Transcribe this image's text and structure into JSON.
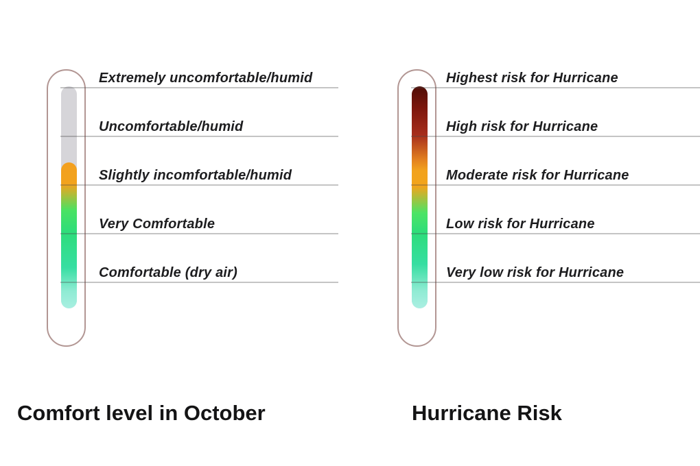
{
  "page": {
    "background_color": "#ffffff"
  },
  "gauges": [
    {
      "id": "comfort-level",
      "title": "Comfort level in October",
      "levels": [
        "Extremely uncomfortable/humid",
        "Uncomfortable/humid",
        "Slightly incomfortable/humid",
        "Very Comfortable",
        "Comfortable (dry air)"
      ]
    },
    {
      "id": "hurricane-risk",
      "title": "Hurricane Risk",
      "levels": [
        "Highest risk for Hurricane",
        "High risk for Hurricane",
        "Moderate risk for Hurricane",
        "Low risk for Hurricane",
        "Very low risk for Hurricane"
      ]
    }
  ],
  "chart_data": [
    {
      "type": "gauge",
      "variant": "thermometer",
      "title": "Comfort level in October",
      "scale_levels_top_to_bottom": [
        "Extremely uncomfortable/humid",
        "Uncomfortable/humid",
        "Slightly incomfortable/humid",
        "Very Comfortable",
        "Comfortable (dry air)"
      ],
      "value_level": "Slightly incomfortable/humid",
      "fill_fraction": 0.66,
      "fill_gradient_top_to_bottom": [
        "#f2a31d",
        "#49e263",
        "#2edd7b",
        "#37dea2",
        "#a8efe1"
      ],
      "empty_tube_color": "#d6d5d9",
      "outline_color": "#b29693",
      "gridlines": true,
      "legend_position": "none"
    },
    {
      "type": "gauge",
      "variant": "thermometer",
      "title": "Hurricane Risk",
      "scale_levels_top_to_bottom": [
        "Highest risk for Hurricane",
        "High risk for Hurricane",
        "Moderate risk for Hurricane",
        "Low risk for Hurricane",
        "Very low risk for Hurricane"
      ],
      "value_level": "Highest risk for Hurricane",
      "fill_fraction": 1.0,
      "fill_gradient_top_to_bottom": [
        "#500e07",
        "#a72e1c",
        "#f2a31d",
        "#4ce465",
        "#2edd7b",
        "#abefe2"
      ],
      "empty_tube_color": "#d6d5d9",
      "outline_color": "#b29693",
      "gridlines": true,
      "legend_position": "none"
    }
  ]
}
